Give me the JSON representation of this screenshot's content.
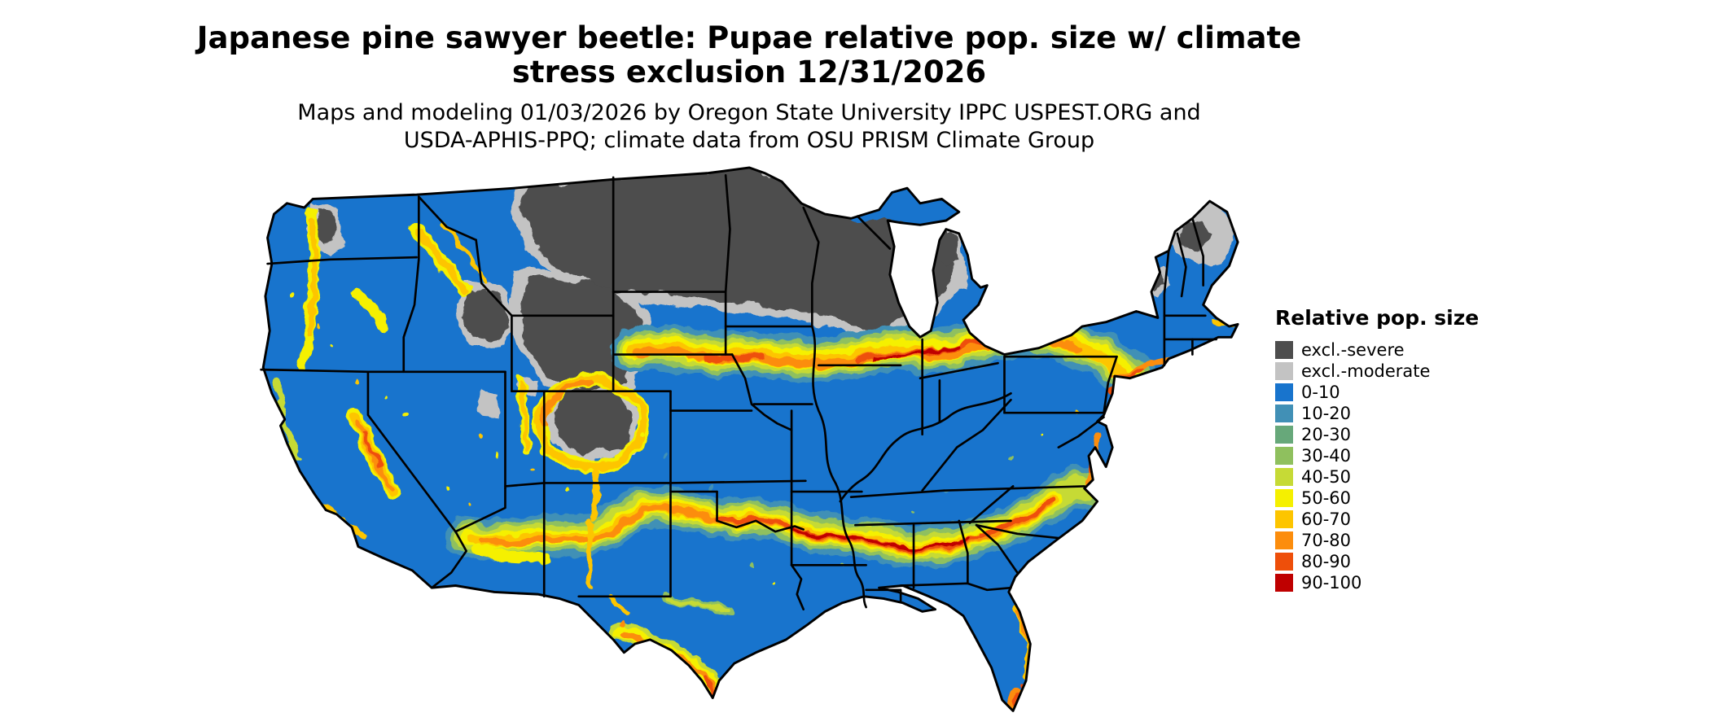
{
  "title": {
    "line1": "Japanese pine sawyer beetle: Pupae relative pop. size w/ climate",
    "line2": "stress exclusion 12/31/2026"
  },
  "subtitle": {
    "line1": "Maps and modeling 01/03/2026 by Oregon State University IPPC USPEST.ORG and",
    "line2": "USDA-APHIS-PPQ; climate data from OSU PRISM Climate Group"
  },
  "legend": {
    "title": "Relative pop. size",
    "entries": [
      {
        "label": "excl.-severe",
        "color": "#4d4d4d"
      },
      {
        "label": "excl.-moderate",
        "color": "#c3c3c3"
      },
      {
        "label": "0-10",
        "color": "#1874cd"
      },
      {
        "label": "10-20",
        "color": "#4190b6"
      },
      {
        "label": "20-30",
        "color": "#67a87a"
      },
      {
        "label": "30-40",
        "color": "#8fc05e"
      },
      {
        "label": "40-50",
        "color": "#c6da36"
      },
      {
        "label": "50-60",
        "color": "#f5f000"
      },
      {
        "label": "60-70",
        "color": "#fdc500"
      },
      {
        "label": "70-80",
        "color": "#fc8d0d"
      },
      {
        "label": "80-90",
        "color": "#ee4f0a"
      },
      {
        "label": "90-100",
        "color": "#bf0000"
      }
    ]
  },
  "map": {
    "region": "Contiguous United States",
    "areas": [
      {
        "region": "Northern Plains, upper Midwest and northern Rockies",
        "class": "excl.-severe"
      },
      {
        "region": "Band south of severe zone (SD, southern MN, WI, MI, northern New England)",
        "class": "excl.-moderate"
      },
      {
        "region": "High Rockies of Colorado, Wyoming and central Idaho",
        "class": "excl.-severe"
      },
      {
        "region": "Central band from Kansas through Missouri, Ohio Valley to Mid-Atlantic coast",
        "class": "60-100"
      },
      {
        "region": "Southern band from Arizona/New Mexico through Oklahoma, Arkansas, Tennessee to the Carolinas",
        "class": "60-100"
      },
      {
        "region": "Sierra Nevada and western mountain ranges",
        "class": "50-90"
      },
      {
        "region": "South Florida tip and south Texas tip",
        "class": "60-90"
      },
      {
        "region": "Most remaining lowland areas",
        "class": "0-10"
      }
    ]
  }
}
